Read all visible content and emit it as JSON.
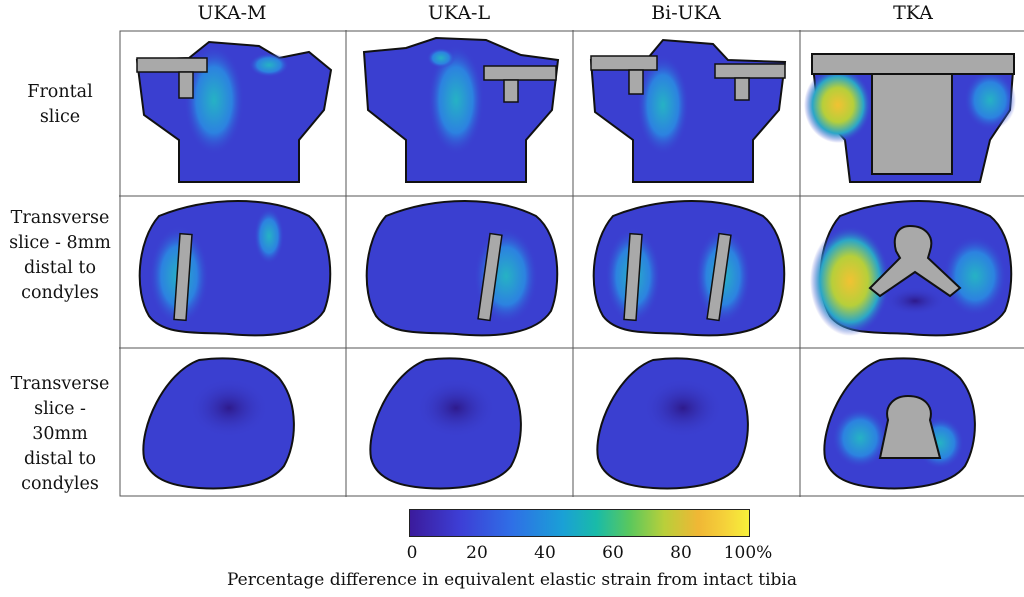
{
  "columns": [
    "UKA-M",
    "UKA-L",
    "Bi-UKA",
    "TKA"
  ],
  "rows": [
    "Frontal\nslice",
    "Transverse\nslice - 8mm\ndistal to\ncondyles",
    "Transverse\nslice - 30mm\ndistal to\ncondyles"
  ],
  "colorbar": {
    "ticks": [
      "0",
      "20",
      "40",
      "60",
      "80",
      "100%"
    ],
    "label": "Percentage difference in equivalent elastic strain from intact tibia",
    "range": [
      0,
      100
    ],
    "colormap": [
      "#3b1b9c",
      "#3d3fd6",
      "#2f6fe6",
      "#1aa0d6",
      "#19bba8",
      "#5cc85c",
      "#b9cf3a",
      "#f0b735",
      "#f5d23a",
      "#f7f03a"
    ]
  },
  "colors": {
    "implant": "#a9a9a9",
    "bone_base": "#3a3fd0",
    "outline": "#111111"
  }
}
